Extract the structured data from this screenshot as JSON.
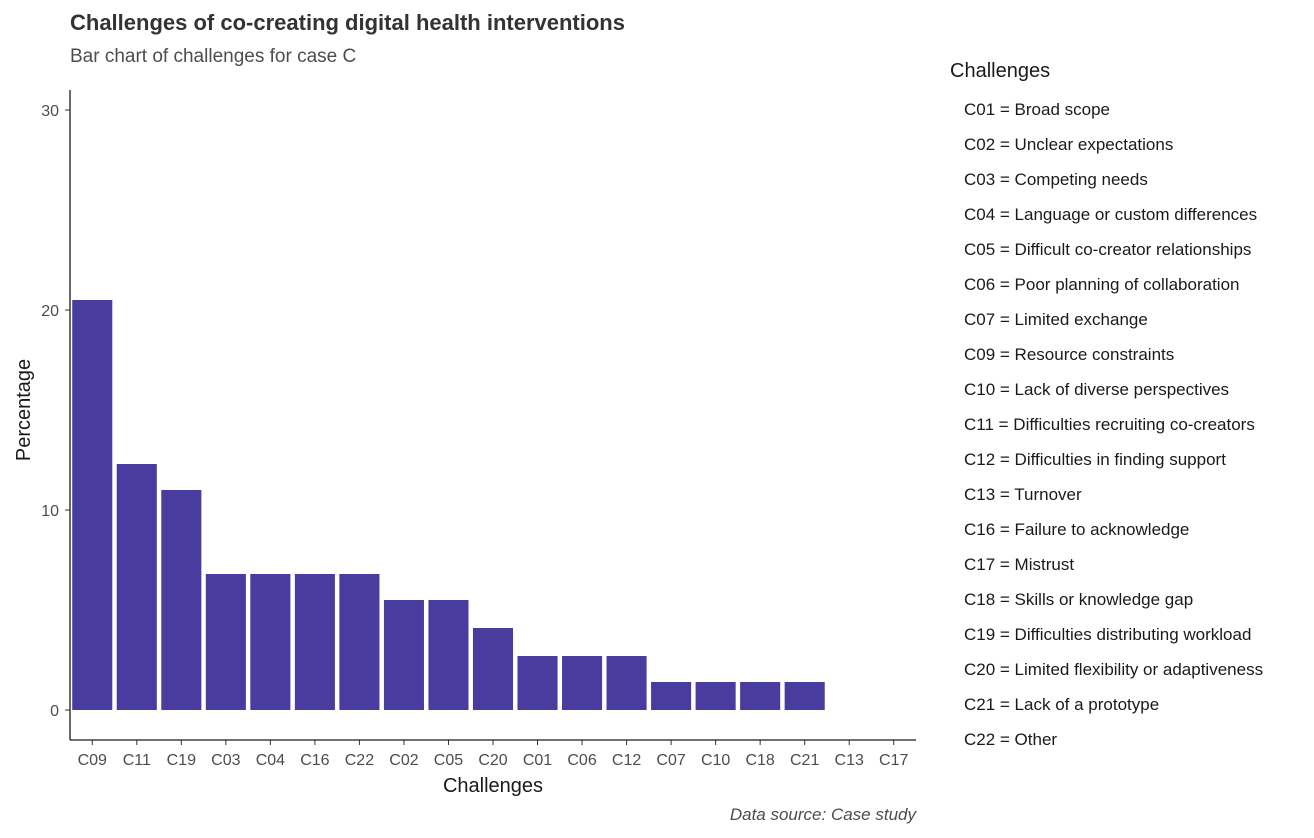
{
  "chart_data": {
    "type": "bar",
    "title": "Challenges of co-creating digital health interventions",
    "subtitle": "Bar chart of challenges for case C",
    "caption": "Data source: Case study",
    "xlabel": "Challenges",
    "ylabel": "Percentage",
    "ylim": [
      0,
      31
    ],
    "yticks": [
      0,
      10,
      20,
      30
    ],
    "grid": false,
    "bar_color": "#483D9F",
    "categories": [
      "C09",
      "C11",
      "C19",
      "C03",
      "C04",
      "C16",
      "C22",
      "C02",
      "C05",
      "C20",
      "C01",
      "C06",
      "C12",
      "C07",
      "C10",
      "C18",
      "C21",
      "C13",
      "C17"
    ],
    "values": [
      20.5,
      12.3,
      11.0,
      6.8,
      6.8,
      6.8,
      6.8,
      5.5,
      5.5,
      4.1,
      2.7,
      2.7,
      2.7,
      1.4,
      1.4,
      1.4,
      1.4,
      0,
      0
    ],
    "legend": {
      "position": "right",
      "title": "Challenges",
      "entries": [
        "C01 = Broad scope",
        "C02 = Unclear expectations",
        "C03 = Competing needs",
        "C04 = Language or custom differences",
        "C05 = Difficult co-creator relationships",
        "C06 = Poor planning of collaboration",
        "C07 = Limited exchange",
        "C09 = Resource constraints",
        "C10 = Lack of diverse perspectives",
        "C11 = Difficulties recruiting co-creators",
        "C12 = Difficulties in finding support",
        "C13 = Turnover",
        "C16 = Failure to acknowledge",
        "C17 = Mistrust",
        "C18 = Skills or knowledge gap",
        "C19 = Difficulties distributing workload",
        "C20 = Limited flexibility or adaptiveness",
        "C21 = Lack of a prototype",
        "C22 = Other"
      ]
    }
  }
}
